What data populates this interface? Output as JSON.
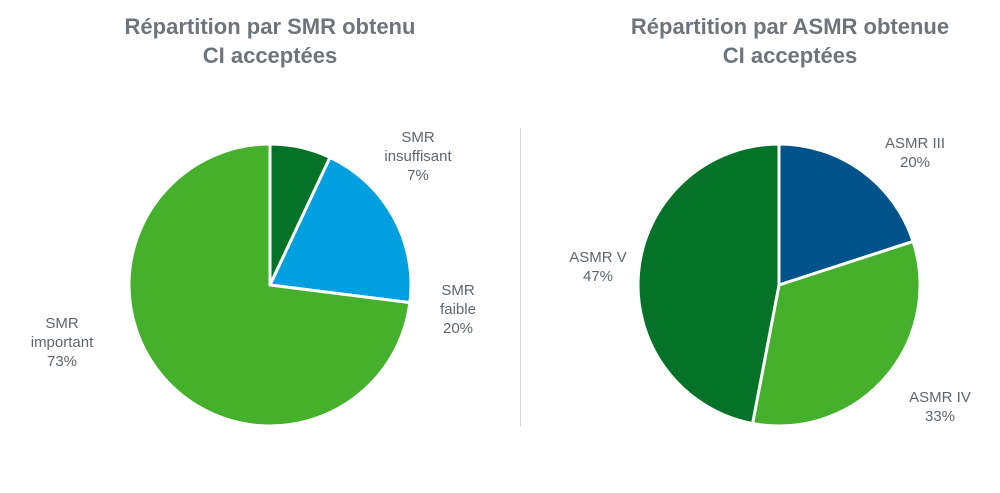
{
  "chart_data": [
    {
      "type": "pie",
      "title": [
        "Répartition par SMR obtenu",
        "CI acceptées"
      ],
      "slices": [
        {
          "label": [
            "SMR",
            "insuffisant"
          ],
          "pct_text": "7%",
          "value": 7,
          "color": "#047327"
        },
        {
          "label": [
            "SMR",
            "faible"
          ],
          "pct_text": "20%",
          "value": 20,
          "color": "#00a0e0"
        },
        {
          "label": [
            "SMR",
            "important"
          ],
          "pct_text": "73%",
          "value": 73,
          "color": "#45b02c"
        }
      ]
    },
    {
      "type": "pie",
      "title": [
        "Répartition par ASMR obtenue",
        "CI acceptées"
      ],
      "slices": [
        {
          "label": [
            "ASMR III"
          ],
          "pct_text": "20%",
          "value": 20,
          "color": "#00538a"
        },
        {
          "label": [
            "ASMR IV"
          ],
          "pct_text": "33%",
          "value": 33,
          "color": "#45b02c"
        },
        {
          "label": [
            "ASMR V"
          ],
          "pct_text": "47%",
          "value": 47,
          "color": "#047327"
        }
      ]
    }
  ]
}
